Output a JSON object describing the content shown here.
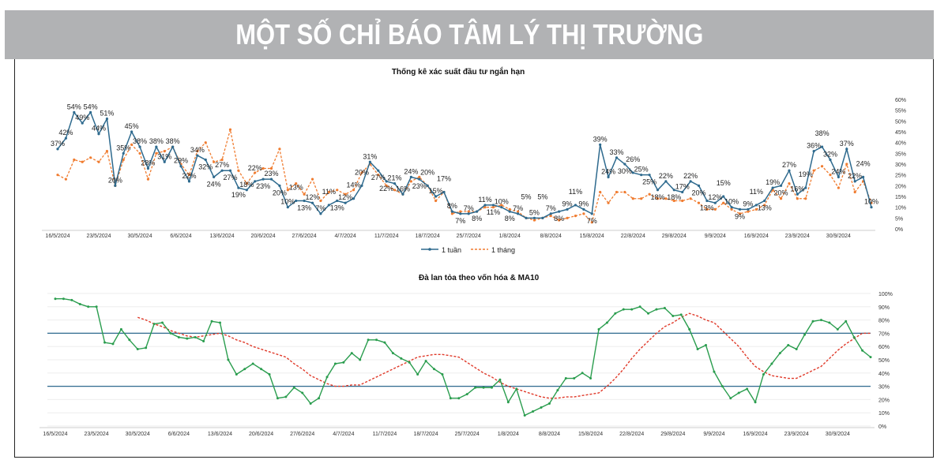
{
  "header": {
    "title": "MỘT SỐ CHỈ BÁO TÂM LÝ THỊ TRƯỜNG"
  },
  "chart_data": [
    {
      "type": "line",
      "title": "Thống kê xác suất đầu tư ngắn hạn",
      "xlabel": "",
      "ylabel": "",
      "ylim": [
        0,
        60
      ],
      "y_ticks": [
        "0%",
        "5%",
        "10%",
        "15%",
        "20%",
        "25%",
        "30%",
        "35%",
        "40%",
        "45%",
        "50%",
        "55%",
        "60%"
      ],
      "x_tick_labels": [
        "16/5/2024",
        "23/5/2024",
        "30/5/2024",
        "6/6/2024",
        "13/6/2024",
        "20/6/2024",
        "27/6/2024",
        "4/7/2024",
        "11/7/2024",
        "18/7/2024",
        "25/7/2024",
        "1/8/2024",
        "8/8/2024",
        "15/8/2024",
        "22/8/2024",
        "29/8/2024",
        "9/9/2024",
        "16/9/2024",
        "23/9/2024",
        "30/9/2024"
      ],
      "legend_position": "bottom",
      "colors": {
        "week": "#2e6a8e",
        "month": "#f07c30"
      },
      "series": [
        {
          "name": "1 tuần",
          "labeled": true,
          "values": [
            37,
            42,
            54,
            49,
            54,
            44,
            51,
            20,
            35,
            45,
            38,
            28,
            38,
            31,
            38,
            29,
            22,
            34,
            32,
            24,
            27,
            27,
            19,
            18,
            22,
            23,
            23,
            20,
            10,
            13,
            13,
            12,
            7,
            11,
            13,
            12,
            14,
            20,
            31,
            27,
            22,
            21,
            16,
            24,
            23,
            20,
            15,
            17,
            8,
            7,
            7,
            8,
            11,
            11,
            10,
            8,
            7,
            5,
            5,
            5,
            7,
            8,
            9,
            11,
            9,
            7,
            39,
            24,
            33,
            30,
            26,
            25,
            25,
            18,
            22,
            18,
            17,
            22,
            20,
            13,
            12,
            15,
            10,
            9,
            9,
            11,
            13,
            19,
            20,
            27,
            16,
            19,
            36,
            38,
            32,
            24,
            37,
            22,
            24,
            10
          ]
        },
        {
          "name": "1 tháng",
          "labeled": false,
          "values": [
            25,
            23,
            32,
            31,
            33,
            31,
            36,
            20,
            32,
            39,
            35,
            23,
            35,
            36,
            38,
            30,
            25,
            36,
            40,
            31,
            32,
            46,
            27,
            21,
            26,
            28,
            28,
            37,
            18,
            21,
            16,
            23,
            13,
            17,
            18,
            16,
            18,
            26,
            30,
            25,
            20,
            18,
            16,
            22,
            24,
            20,
            13,
            17,
            7,
            8,
            8,
            8,
            10,
            10,
            11,
            9,
            8,
            5,
            4,
            5,
            6,
            4,
            5,
            6,
            7,
            3,
            17,
            12,
            17,
            17,
            14,
            14,
            16,
            14,
            14,
            13,
            13,
            14,
            12,
            9,
            9,
            12,
            9,
            7,
            8,
            9,
            11,
            18,
            14,
            21,
            14,
            14,
            27,
            29,
            25,
            19,
            30,
            17,
            22,
            12
          ]
        }
      ]
    },
    {
      "type": "line",
      "title": "Đà lan tỏa theo vốn hóa & MA10",
      "xlabel": "",
      "ylabel": "",
      "ylim": [
        0,
        100
      ],
      "y_ticks": [
        "0%",
        "10%",
        "20%",
        "30%",
        "40%",
        "50%",
        "60%",
        "70%",
        "80%",
        "90%",
        "100%"
      ],
      "x_tick_labels": [
        "16/5/2024",
        "23/5/2024",
        "30/5/2024",
        "6/6/2024",
        "13/6/2024",
        "20/6/2024",
        "27/6/2024",
        "4/7/2024",
        "11/7/2024",
        "18/7/2024",
        "25/7/2024",
        "1/8/2024",
        "8/8/2024",
        "15/8/2024",
        "22/8/2024",
        "29/8/2024",
        "9/9/2024",
        "16/9/2024",
        "23/9/2024",
        "30/9/2024"
      ],
      "reference_lines": [
        70,
        30
      ],
      "colors": {
        "breadth": "#2a9d4e",
        "ma10": "#e03a2a",
        "reference": "#2e6a8e"
      },
      "series": [
        {
          "name": "Đà lan tỏa",
          "values": [
            96,
            96,
            95,
            92,
            90,
            90,
            63,
            62,
            73,
            65,
            58,
            59,
            77,
            78,
            70,
            67,
            66,
            67,
            64,
            79,
            78,
            50,
            39,
            43,
            47,
            43,
            39,
            21,
            22,
            29,
            25,
            17,
            21,
            37,
            47,
            48,
            55,
            50,
            65,
            65,
            63,
            55,
            51,
            48,
            39,
            49,
            43,
            39,
            21,
            21,
            24,
            29,
            29,
            29,
            35,
            18,
            28,
            8,
            11,
            14,
            17,
            27,
            36,
            36,
            40,
            36,
            73,
            78,
            85,
            88,
            88,
            90,
            85,
            88,
            89,
            83,
            84,
            73,
            58,
            61,
            41,
            30,
            21,
            25,
            28,
            18,
            39,
            47,
            55,
            61,
            58,
            69,
            79,
            80,
            78,
            73,
            79,
            67,
            57,
            52
          ]
        },
        {
          "name": "MA10",
          "values": [
            null,
            null,
            null,
            null,
            null,
            null,
            null,
            null,
            null,
            null,
            82,
            80,
            77,
            75,
            72,
            70,
            68,
            67,
            68,
            69,
            70,
            68,
            65,
            63,
            60,
            58,
            56,
            54,
            52,
            47,
            43,
            38,
            35,
            32,
            30,
            30,
            31,
            31,
            34,
            37,
            40,
            43,
            46,
            49,
            52,
            53,
            54,
            54,
            53,
            52,
            48,
            44,
            40,
            37,
            33,
            30,
            28,
            26,
            24,
            22,
            21,
            21,
            22,
            22,
            23,
            24,
            25,
            30,
            36,
            43,
            51,
            58,
            64,
            70,
            75,
            78,
            82,
            85,
            83,
            80,
            78,
            72,
            66,
            60,
            52,
            45,
            41,
            38,
            37,
            36,
            36,
            39,
            42,
            45,
            51,
            57,
            62,
            66,
            70,
            70
          ]
        }
      ]
    }
  ]
}
